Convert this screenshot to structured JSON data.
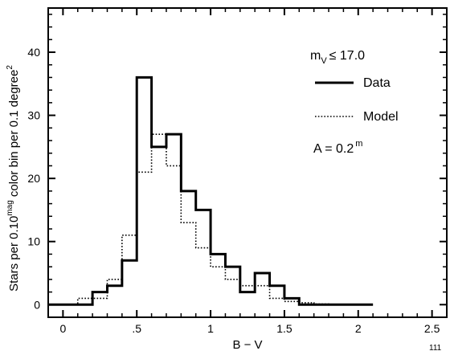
{
  "chart_data": {
    "type": "histogram",
    "xlabel": "B − V",
    "ylabel": "Stars per 0.10mag color bin per 0.1 degree²",
    "ylabel_parts": {
      "pre": "Stars per 0.10",
      "sup1": "mag",
      "mid": " color bin per 0.1 degree",
      "sup2": "2"
    },
    "xlim": [
      -0.1,
      2.6
    ],
    "ylim": [
      -2,
      47
    ],
    "xticks": [
      0,
      0.5,
      1,
      1.5,
      2,
      2.5
    ],
    "xtick_labels": [
      "0",
      ".5",
      "1",
      "1.5",
      "2",
      "2.5"
    ],
    "yticks": [
      0,
      10,
      20,
      30,
      40
    ],
    "ytick_labels": [
      "0",
      "10",
      "20",
      "30",
      "40"
    ],
    "bin_edges": [
      -0.1,
      0.1,
      0.2,
      0.3,
      0.4,
      0.5,
      0.6,
      0.7,
      0.8,
      0.9,
      1.0,
      1.1,
      1.2,
      1.3,
      1.4,
      1.5,
      1.6,
      1.7,
      1.8,
      1.9,
      2.0,
      2.1
    ],
    "series": [
      {
        "name": "Data",
        "style": "solid",
        "values": [
          0,
          0,
          2,
          3,
          7,
          36,
          25,
          27,
          18,
          15,
          8,
          6,
          2,
          5,
          3,
          1,
          0,
          0,
          0,
          0,
          0
        ]
      },
      {
        "name": "Model",
        "style": "dotted",
        "values": [
          0,
          1,
          1,
          4,
          11,
          21,
          27,
          22,
          13,
          9,
          6,
          4,
          3,
          3,
          1,
          0.5,
          0.3,
          0.1,
          0,
          0,
          0
        ]
      }
    ],
    "legend": {
      "placement": "top-right",
      "title": {
        "pre": "m",
        "sub": "V",
        "post": "≤ 17.0"
      },
      "entries": [
        "Data",
        "Model"
      ],
      "extinction": {
        "pre": "A = 0.2",
        "sup": "m"
      }
    },
    "page_number": "111"
  }
}
